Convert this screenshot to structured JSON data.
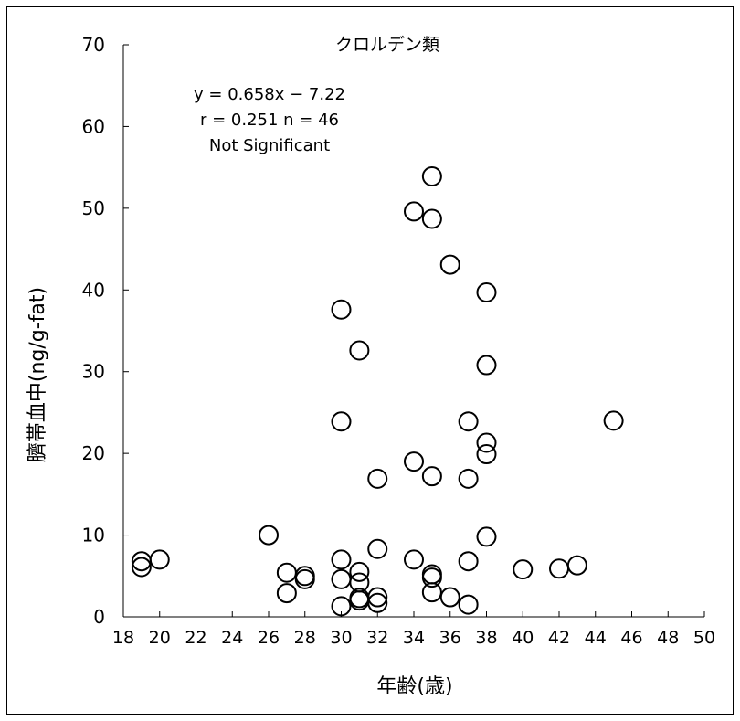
{
  "chart_data": {
    "type": "scatter",
    "title": "クロルデン類",
    "xlabel": "年齢(歳)",
    "ylabel": "臍帯血中(ng/g-fat)",
    "xlim": [
      18,
      50
    ],
    "ylim": [
      0,
      70
    ],
    "xticks": [
      18,
      20,
      22,
      24,
      26,
      28,
      30,
      32,
      34,
      36,
      38,
      40,
      42,
      44,
      46,
      48,
      50
    ],
    "yticks": [
      0,
      10,
      20,
      30,
      40,
      50,
      60,
      70
    ],
    "grid": false,
    "annotations": [
      "y = 0.658x − 7.22",
      "r = 0.251 n = 46",
      "Not Significant"
    ],
    "points": [
      {
        "x": 19,
        "y": 6.8
      },
      {
        "x": 19,
        "y": 6.1
      },
      {
        "x": 20,
        "y": 7.0
      },
      {
        "x": 26,
        "y": 10.0
      },
      {
        "x": 27,
        "y": 5.4
      },
      {
        "x": 27,
        "y": 2.9
      },
      {
        "x": 28,
        "y": 5.0
      },
      {
        "x": 28,
        "y": 4.6
      },
      {
        "x": 30,
        "y": 37.6
      },
      {
        "x": 30,
        "y": 23.9
      },
      {
        "x": 30,
        "y": 7.0
      },
      {
        "x": 30,
        "y": 4.6
      },
      {
        "x": 30,
        "y": 1.3
      },
      {
        "x": 31,
        "y": 32.6
      },
      {
        "x": 31,
        "y": 5.5
      },
      {
        "x": 31,
        "y": 4.2
      },
      {
        "x": 31,
        "y": 2.3
      },
      {
        "x": 31,
        "y": 2.0
      },
      {
        "x": 32,
        "y": 16.9
      },
      {
        "x": 32,
        "y": 8.3
      },
      {
        "x": 32,
        "y": 2.4
      },
      {
        "x": 32,
        "y": 1.7
      },
      {
        "x": 34,
        "y": 49.6
      },
      {
        "x": 34,
        "y": 19.0
      },
      {
        "x": 34,
        "y": 7.0
      },
      {
        "x": 35,
        "y": 53.9
      },
      {
        "x": 35,
        "y": 48.7
      },
      {
        "x": 35,
        "y": 17.2
      },
      {
        "x": 35,
        "y": 5.2
      },
      {
        "x": 35,
        "y": 4.8
      },
      {
        "x": 35,
        "y": 3.0
      },
      {
        "x": 36,
        "y": 43.1
      },
      {
        "x": 36,
        "y": 2.4
      },
      {
        "x": 37,
        "y": 23.9
      },
      {
        "x": 37,
        "y": 16.9
      },
      {
        "x": 37,
        "y": 6.8
      },
      {
        "x": 37,
        "y": 1.5
      },
      {
        "x": 38,
        "y": 39.7
      },
      {
        "x": 38,
        "y": 30.8
      },
      {
        "x": 38,
        "y": 21.3
      },
      {
        "x": 38,
        "y": 19.9
      },
      {
        "x": 38,
        "y": 9.8
      },
      {
        "x": 40,
        "y": 5.8
      },
      {
        "x": 42,
        "y": 5.9
      },
      {
        "x": 43,
        "y": 6.3
      },
      {
        "x": 45,
        "y": 24.0
      }
    ]
  }
}
